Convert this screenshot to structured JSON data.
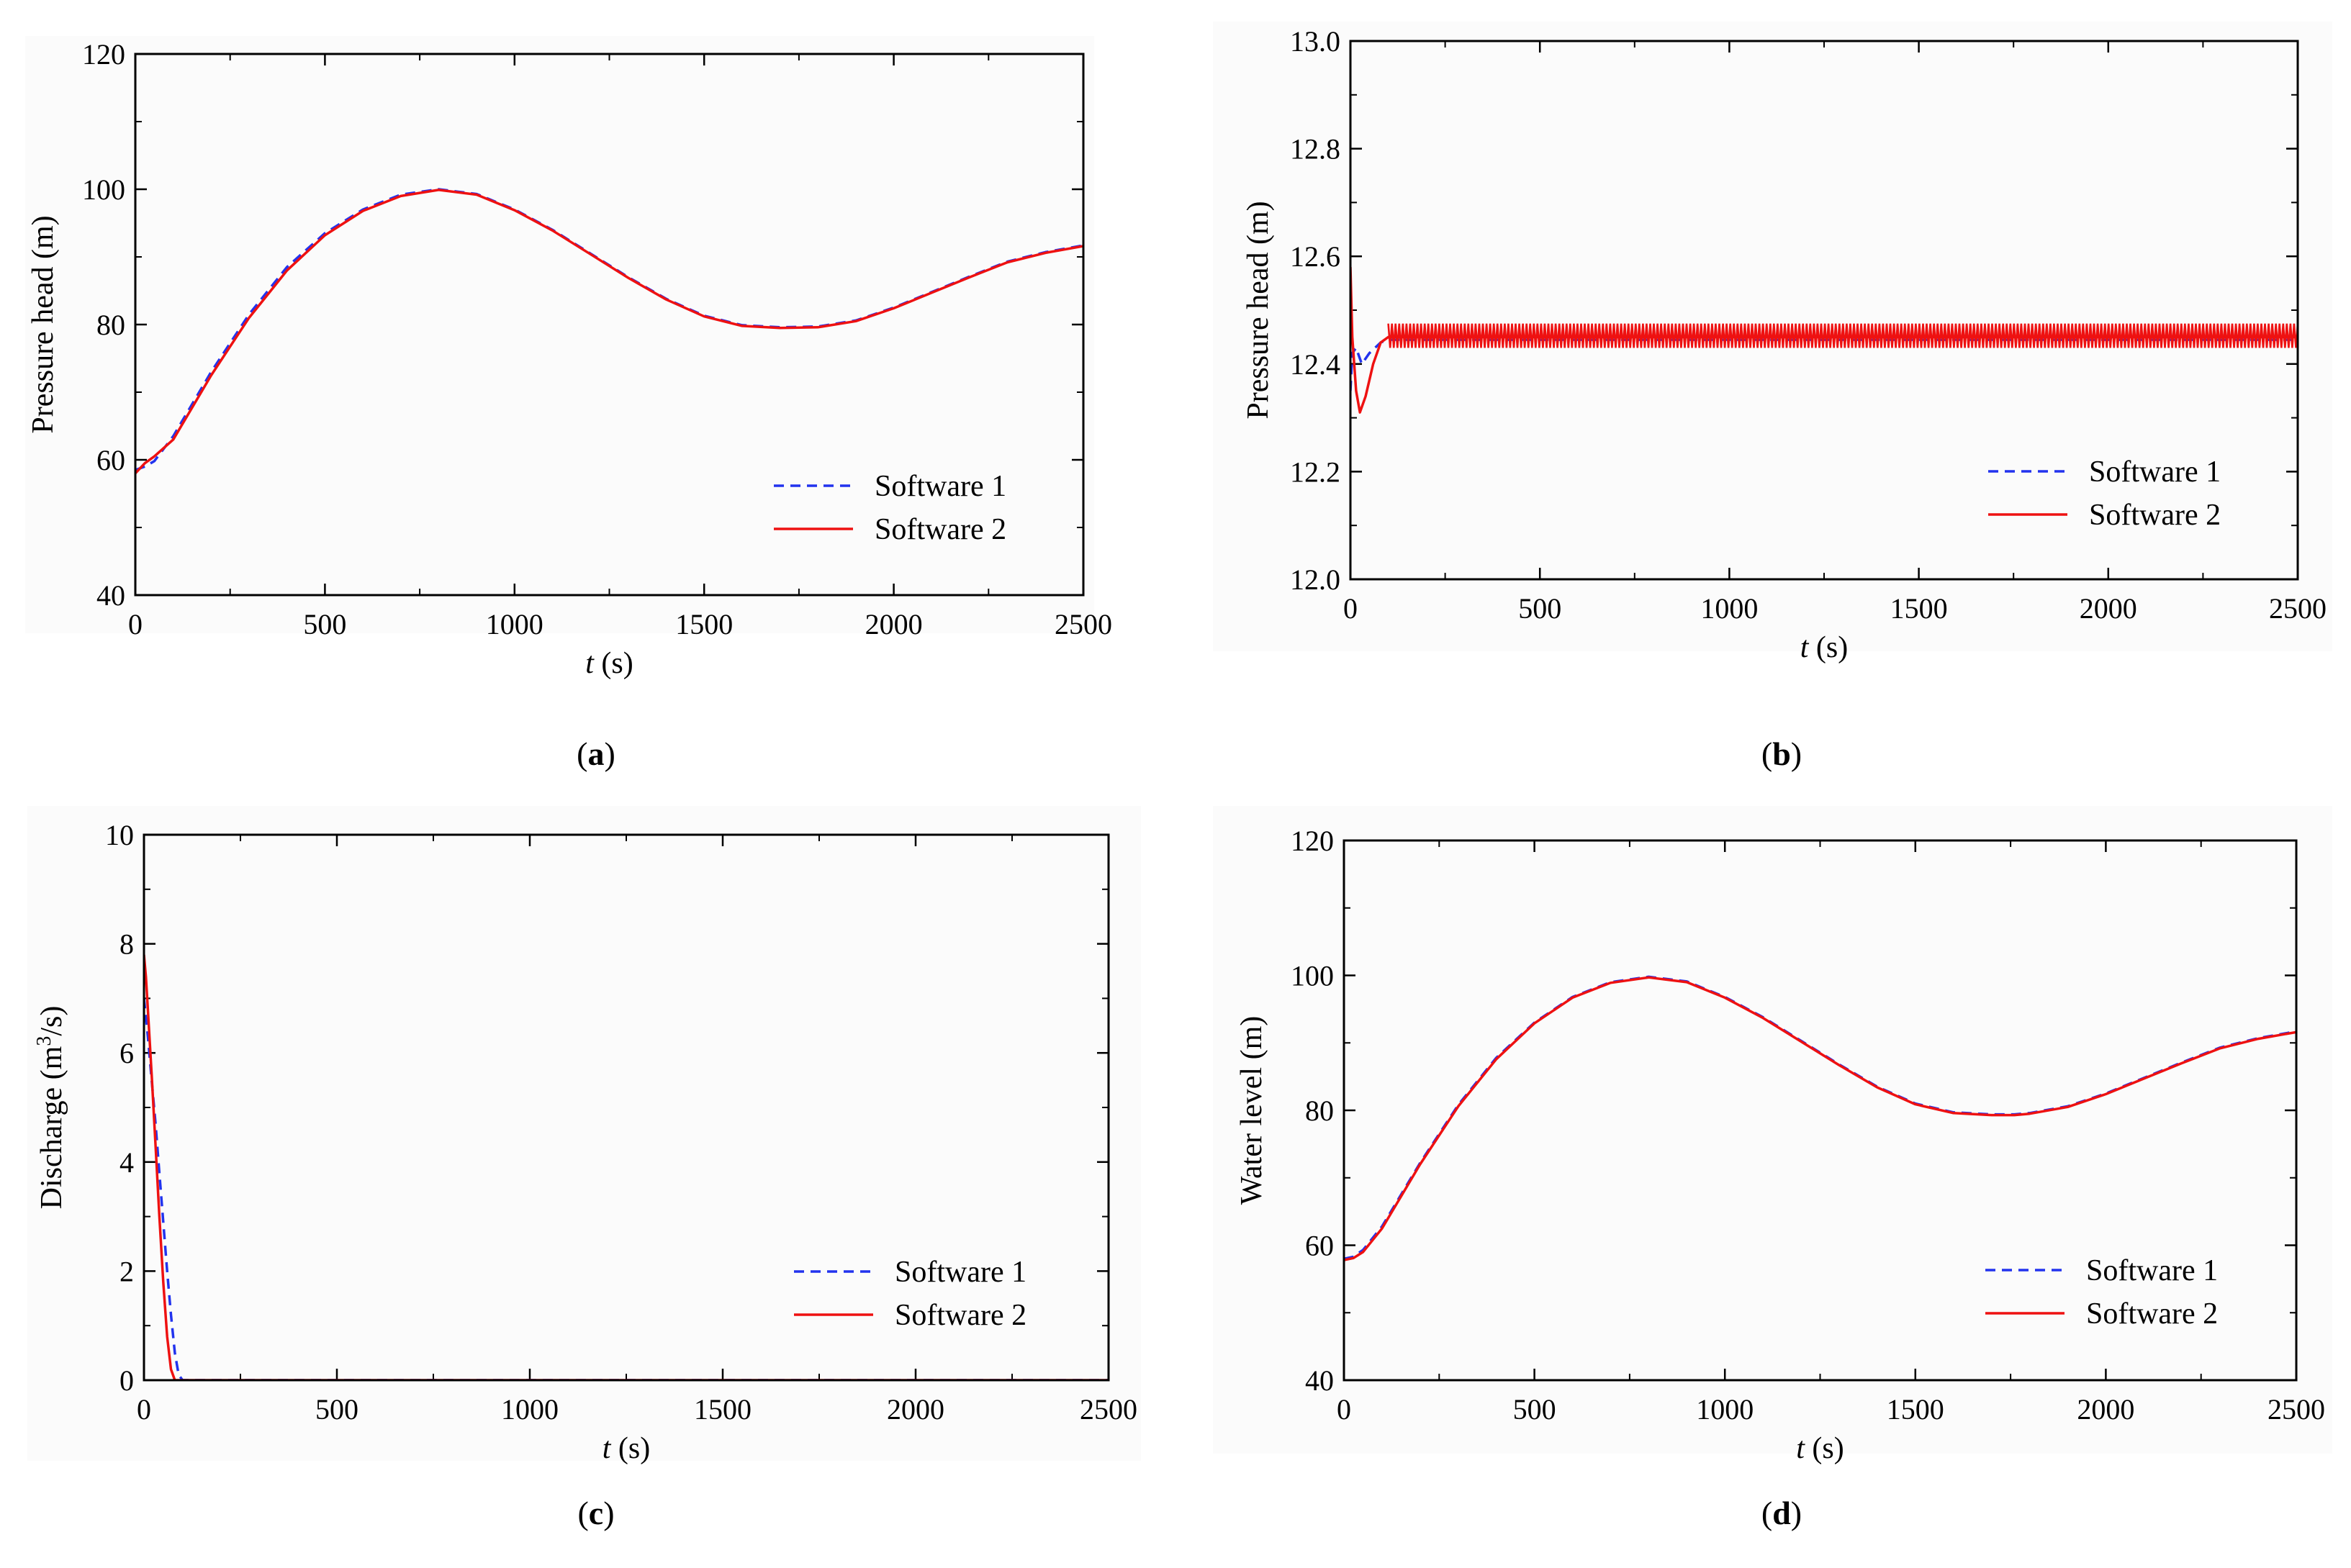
{
  "chart_data": [
    {
      "type": "line",
      "panel": "a",
      "caption_open": "(",
      "caption_letter": "a",
      "caption_close": ")",
      "xlabel_italic": "t",
      "xlabel_unit": " (s)",
      "ylabel": "Pressure head (m)",
      "xlim": [
        0,
        2500
      ],
      "ylim": [
        40,
        120
      ],
      "xticks": [
        0,
        500,
        1000,
        1500,
        2000,
        2500
      ],
      "yticks": [
        40,
        60,
        80,
        100,
        120
      ],
      "legend_position": "lower-right",
      "series": [
        {
          "name": "Software 1",
          "style": "dashed",
          "color": "#2233ee",
          "x": [
            0,
            25,
            50,
            100,
            200,
            300,
            400,
            500,
            600,
            700,
            800,
            900,
            1000,
            1100,
            1200,
            1300,
            1400,
            1500,
            1600,
            1700,
            1800,
            1900,
            2000,
            2100,
            2200,
            2300,
            2400,
            2500
          ],
          "y": [
            58.5,
            59.0,
            59.8,
            63.5,
            73.0,
            81.5,
            88.5,
            93.5,
            97.0,
            99.2,
            100.0,
            99.3,
            97.0,
            94.0,
            90.5,
            87.0,
            83.8,
            81.3,
            79.9,
            79.6,
            79.7,
            80.6,
            82.5,
            84.8,
            87.1,
            89.3,
            90.7,
            91.7
          ]
        },
        {
          "name": "Software 2",
          "style": "solid",
          "color": "#ee1111",
          "x": [
            0,
            25,
            50,
            100,
            200,
            300,
            400,
            500,
            600,
            700,
            800,
            900,
            1000,
            1100,
            1200,
            1300,
            1400,
            1500,
            1600,
            1700,
            1800,
            1900,
            2000,
            2100,
            2200,
            2300,
            2400,
            2500
          ],
          "y": [
            58.0,
            59.5,
            60.5,
            63.0,
            72.5,
            81.0,
            88.0,
            93.2,
            96.8,
            99.0,
            99.9,
            99.2,
            96.9,
            93.9,
            90.4,
            86.9,
            83.7,
            81.2,
            79.8,
            79.5,
            79.6,
            80.5,
            82.4,
            84.7,
            87.0,
            89.2,
            90.6,
            91.6
          ]
        }
      ]
    },
    {
      "type": "line",
      "panel": "b",
      "caption_open": "(",
      "caption_letter": "b",
      "caption_close": ")",
      "xlabel_italic": "t",
      "xlabel_unit": " (s)",
      "ylabel": "Pressure head (m)",
      "xlim": [
        0,
        2500
      ],
      "ylim": [
        12.0,
        13.0
      ],
      "xticks": [
        0,
        500,
        1000,
        1500,
        2000,
        2500
      ],
      "yticks": [
        12.0,
        12.2,
        12.4,
        12.6,
        12.8,
        13.0
      ],
      "legend_position": "lower-right",
      "series": [
        {
          "name": "Software 1",
          "style": "dashed",
          "color": "#2233ee",
          "x": [
            0,
            5,
            15,
            30,
            50,
            80,
            100,
            2500
          ],
          "y": [
            12.35,
            12.42,
            12.43,
            12.4,
            12.42,
            12.44,
            12.445,
            12.445
          ]
        },
        {
          "name": "Software 2",
          "style": "solid",
          "color": "#ee1111",
          "oscillation_band": [
            12.43,
            12.475
          ],
          "x": [
            0,
            5,
            15,
            25,
            40,
            60,
            80,
            100,
            2500
          ],
          "y": [
            12.58,
            12.45,
            12.35,
            12.31,
            12.34,
            12.4,
            12.44,
            12.45,
            12.45
          ]
        }
      ]
    },
    {
      "type": "line",
      "panel": "c",
      "caption_open": "(",
      "caption_letter": "c",
      "caption_close": ")",
      "xlabel_italic": "t",
      "xlabel_unit": " (s)",
      "ylabel_main": "Discharge (m",
      "ylabel_sup": "3",
      "ylabel_tail": "/s)",
      "xlim": [
        0,
        2500
      ],
      "ylim": [
        0,
        10
      ],
      "xticks": [
        0,
        500,
        1000,
        1500,
        2000,
        2500
      ],
      "yticks": [
        0,
        2,
        4,
        6,
        8,
        10
      ],
      "legend_position": "lower-right",
      "series": [
        {
          "name": "Software 1",
          "style": "dashed",
          "color": "#2233ee",
          "x": [
            0,
            10,
            20,
            30,
            40,
            50,
            60,
            70,
            80,
            90,
            100,
            2500
          ],
          "y": [
            7.0,
            6.3,
            5.5,
            4.7,
            3.8,
            2.9,
            2.0,
            1.2,
            0.5,
            0.1,
            0,
            0
          ]
        },
        {
          "name": "Software 2",
          "style": "solid",
          "color": "#ee1111",
          "x": [
            0,
            5,
            10,
            20,
            30,
            40,
            50,
            60,
            70,
            80,
            2500
          ],
          "y": [
            7.8,
            7.4,
            6.8,
            5.6,
            4.3,
            3.0,
            1.8,
            0.8,
            0.2,
            0,
            0
          ]
        }
      ]
    },
    {
      "type": "line",
      "panel": "d",
      "caption_open": "(",
      "caption_letter": "d",
      "caption_close": ")",
      "xlabel_italic": "t",
      "xlabel_unit": " (s)",
      "ylabel": "Water level (m)",
      "xlim": [
        0,
        2500
      ],
      "ylim": [
        40,
        120
      ],
      "xticks": [
        0,
        500,
        1000,
        1500,
        2000,
        2500
      ],
      "yticks": [
        40,
        60,
        80,
        100,
        120
      ],
      "legend_position": "lower-right",
      "series": [
        {
          "name": "Software 1",
          "style": "dashed",
          "color": "#2233ee",
          "x": [
            0,
            25,
            50,
            100,
            200,
            300,
            400,
            500,
            600,
            700,
            800,
            900,
            1000,
            1100,
            1200,
            1300,
            1400,
            1500,
            1600,
            1700,
            1760,
            1800,
            1900,
            2000,
            2100,
            2200,
            2300,
            2400,
            2500
          ],
          "y": [
            58.0,
            58.3,
            59.3,
            62.8,
            72.2,
            80.8,
            87.8,
            93.0,
            96.8,
            99.0,
            99.8,
            99.1,
            96.8,
            93.8,
            90.3,
            86.8,
            83.5,
            81.0,
            79.7,
            79.4,
            79.4,
            79.6,
            80.6,
            82.5,
            84.8,
            87.1,
            89.3,
            90.7,
            91.7
          ]
        },
        {
          "name": "Software 2",
          "style": "solid",
          "color": "#ee1111",
          "x": [
            0,
            25,
            50,
            100,
            200,
            300,
            400,
            500,
            600,
            700,
            800,
            900,
            1000,
            1100,
            1200,
            1300,
            1400,
            1500,
            1600,
            1700,
            1760,
            1800,
            1900,
            2000,
            2100,
            2200,
            2300,
            2400,
            2500
          ],
          "y": [
            57.8,
            58.1,
            59.0,
            62.5,
            72.0,
            80.6,
            87.6,
            92.9,
            96.7,
            98.9,
            99.7,
            99.0,
            96.7,
            93.7,
            90.2,
            86.7,
            83.4,
            80.9,
            79.6,
            79.3,
            79.3,
            79.5,
            80.5,
            82.4,
            84.7,
            87.0,
            89.2,
            90.6,
            91.6
          ]
        }
      ]
    }
  ]
}
